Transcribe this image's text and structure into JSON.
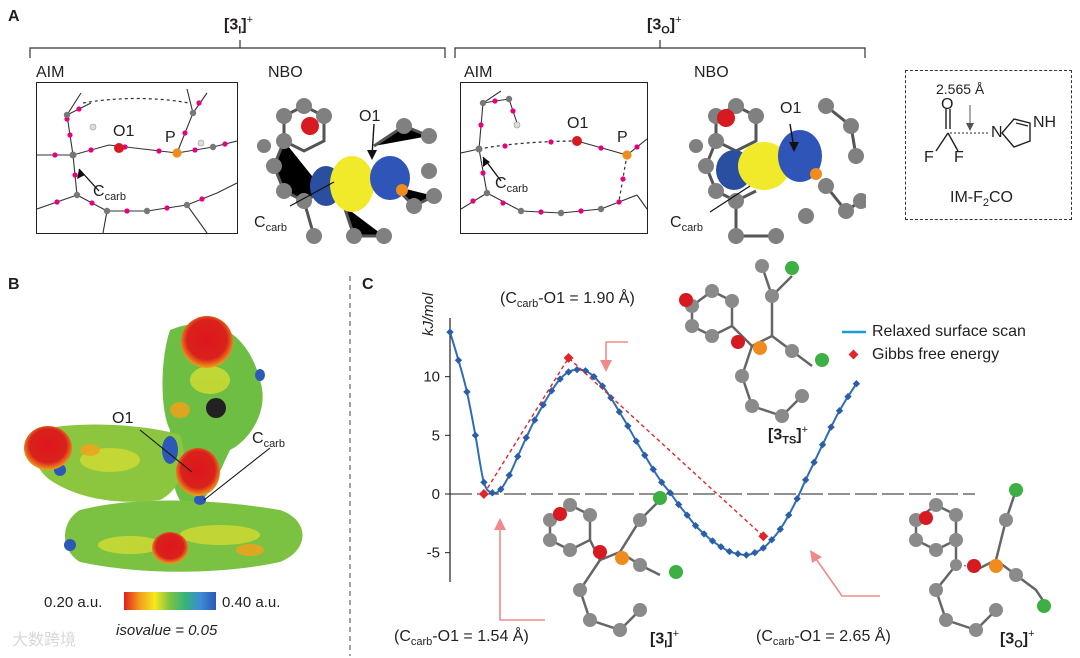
{
  "panel_a": {
    "label": "A",
    "group_left": {
      "pre": "[3",
      "sub": "I",
      "post": "]",
      "sup": "+"
    },
    "group_right": {
      "pre": "[3",
      "sub": "O",
      "post": "]",
      "sup": "+"
    },
    "aim_label": "AIM",
    "nbo_label": "NBO",
    "o1_label": "O1",
    "p_label": "P",
    "ccarb_main": "C",
    "ccarb_sub": "carb",
    "im_distance": "2.565 Å",
    "im_o": "O",
    "im_f": "F",
    "im_n": "N",
    "im_nh": "NH",
    "im_name_pre": "IM-F",
    "im_name_sub": "2",
    "im_name_post": "CO"
  },
  "panel_b": {
    "label": "B",
    "o1_label": "O1",
    "ccarb_main": "C",
    "ccarb_sub": "carb",
    "scale_min": "0.20 a.u.",
    "scale_max": "0.40 a.u.",
    "isovalue": "isovalue = 0.05"
  },
  "panel_c": {
    "label": "C",
    "ts_bond": {
      "pre": "(C",
      "sub": "carb",
      "post": "-O1 = 1.90 Å)"
    },
    "i_bond": {
      "pre": "(C",
      "sub": "carb",
      "post": "-O1 = 1.54 Å)"
    },
    "o_bond": {
      "pre": "(C",
      "sub": "carb",
      "post": "-O1 = 2.65 Å)"
    },
    "ts_name": {
      "pre": "[3",
      "sub": "TS",
      "post": "]",
      "sup": "+"
    },
    "i_name": {
      "pre": "[3",
      "sub": "I",
      "post": "]",
      "sup": "+"
    },
    "o_name": {
      "pre": "[3",
      "sub": "O",
      "post": "]",
      "sup": "+"
    }
  },
  "colors": {
    "scan_line": "#2f6db3",
    "scan_marker": "#2a5fa8",
    "legend_line": "#1a9bd1",
    "gibbs": "#e0262b",
    "arrow_pink": "#f08a8a",
    "atom_c": "#8a8a8a",
    "atom_o": "#d71920",
    "atom_p": "#f08c1e",
    "atom_cl": "#3cb043",
    "bcp": "#e6007e"
  },
  "watermark": "大数跨境",
  "chart_data": {
    "type": "line",
    "ylabel": "kJ/mol",
    "xlabel": "",
    "ylim": [
      -7.5,
      15
    ],
    "yticks": [
      -5,
      0,
      5,
      10
    ],
    "x": [
      1.46,
      1.48,
      1.5,
      1.52,
      1.54,
      1.56,
      1.58,
      1.6,
      1.62,
      1.64,
      1.66,
      1.68,
      1.7,
      1.72,
      1.74,
      1.76,
      1.78,
      1.8,
      1.82,
      1.84,
      1.86,
      1.88,
      1.9,
      1.92,
      1.94,
      1.96,
      1.98,
      2.0,
      2.02,
      2.04,
      2.06,
      2.08,
      2.1,
      2.12,
      2.14,
      2.16,
      2.18,
      2.2,
      2.22,
      2.24,
      2.26,
      2.28,
      2.3,
      2.32,
      2.34,
      2.36,
      2.38,
      2.4,
      2.42,
      2.44,
      2.46,
      2.48,
      2.5,
      2.52,
      2.54,
      2.56,
      2.58,
      2.6,
      2.62,
      2.64,
      2.66,
      2.68,
      2.7
    ],
    "series": [
      {
        "name": "Relaxed surface scan",
        "values": [
          13.8,
          11.4,
          8.7,
          5.0,
          1.0,
          0.1,
          0.4,
          1.6,
          3.2,
          4.8,
          6.3,
          7.6,
          8.8,
          9.8,
          10.4,
          10.6,
          10.5,
          10.0,
          9.2,
          8.2,
          7.0,
          5.8,
          4.5,
          3.3,
          2.1,
          1.0,
          0.1,
          -0.9,
          -1.8,
          -2.7,
          -3.4,
          -4.0,
          -4.5,
          -4.9,
          -5.1,
          -5.2,
          -5.0,
          -4.6,
          -3.9,
          -3.0,
          -1.8,
          -0.4,
          1.2,
          2.7,
          4.2,
          5.7,
          7.1,
          8.3,
          9.4,
          null,
          null,
          null,
          null,
          null,
          null,
          null,
          null,
          null,
          null,
          null,
          null,
          null,
          null
        ],
        "markers": true
      }
    ],
    "gibbs": {
      "name": "Gibbs free energy",
      "points": [
        [
          1.54,
          0.0
        ],
        [
          1.74,
          11.6
        ],
        [
          2.2,
          -3.6
        ]
      ]
    },
    "legend": "top-right"
  }
}
